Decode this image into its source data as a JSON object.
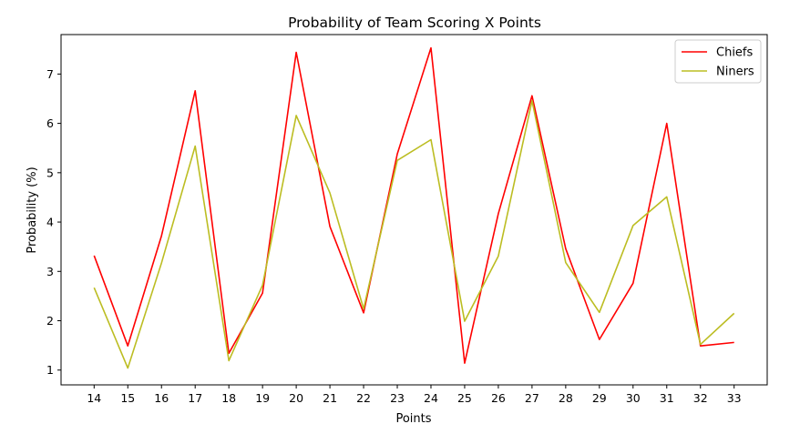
{
  "chart_data": {
    "type": "line",
    "title": "Probability of Team Scoring X Points",
    "xlabel": "Points",
    "ylabel": "Probability (%)",
    "x": [
      14,
      15,
      16,
      17,
      18,
      19,
      20,
      21,
      22,
      23,
      24,
      25,
      26,
      27,
      28,
      29,
      30,
      31,
      32,
      33
    ],
    "ylim": [
      0.7,
      7.8
    ],
    "yticks": [
      1,
      2,
      3,
      4,
      5,
      6,
      7
    ],
    "grid": false,
    "legend_position": "top-right",
    "series": [
      {
        "name": "Chiefs",
        "color": "#ff0000",
        "values": [
          3.32,
          1.49,
          3.72,
          6.66,
          1.34,
          2.56,
          7.44,
          3.91,
          2.16,
          5.38,
          7.53,
          1.14,
          4.17,
          6.56,
          3.46,
          1.62,
          2.76,
          6.0,
          1.49,
          1.56
        ]
      },
      {
        "name": "Niners",
        "color": "#bcbd22",
        "values": [
          2.67,
          1.04,
          3.17,
          5.54,
          1.19,
          2.72,
          6.16,
          4.59,
          2.24,
          5.25,
          5.67,
          1.99,
          3.31,
          6.46,
          3.18,
          2.17,
          3.93,
          4.51,
          1.52,
          2.15
        ]
      }
    ]
  }
}
